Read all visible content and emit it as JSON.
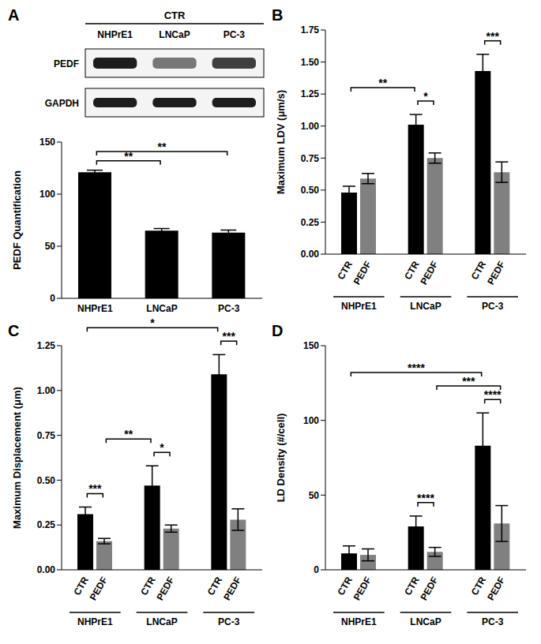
{
  "chart_data": [
    {
      "panel": "A",
      "type": "bar",
      "ylabel": "PEDF Quantification",
      "blot": {
        "header": "CTR",
        "lanes": [
          "NHPrE1",
          "LNCaP",
          "PC-3"
        ],
        "rows": [
          "PEDF",
          "GAPDH"
        ]
      },
      "categories": [
        "NHPrE1",
        "LNCaP",
        "PC-3"
      ],
      "values": [
        121,
        65,
        63
      ],
      "errors": [
        2,
        2,
        2.5
      ],
      "color": "#000000",
      "ylim": [
        0,
        150
      ],
      "yticks": [
        0,
        50,
        100,
        150
      ],
      "annotations": [
        {
          "text": "**",
          "between": [
            "NHPrE1",
            "LNCaP"
          ]
        },
        {
          "text": "**",
          "between": [
            "NHPrE1",
            "PC-3"
          ]
        }
      ]
    },
    {
      "panel": "B",
      "type": "bar",
      "ylabel": "Maximum LDV (μm/s)",
      "categories": [
        "NHPrE1",
        "LNCaP",
        "PC-3"
      ],
      "series": [
        {
          "name": "CTR",
          "color": "#000000",
          "values": [
            0.48,
            1.01,
            1.43
          ],
          "errors": [
            0.05,
            0.08,
            0.13
          ]
        },
        {
          "name": "PEDF",
          "color": "#808080",
          "values": [
            0.59,
            0.75,
            0.64
          ],
          "errors": [
            0.04,
            0.04,
            0.08
          ]
        }
      ],
      "ylim": [
        0,
        1.75
      ],
      "yticks": [
        {
          "value": 0,
          "label": "0.00"
        },
        {
          "value": 0.25,
          "label": "0.25"
        },
        {
          "value": 0.5,
          "label": "0.50"
        },
        {
          "value": 0.75,
          "label": "0.75"
        },
        {
          "value": 1,
          "label": "1.00"
        },
        {
          "value": 1.25,
          "label": "1.25"
        },
        {
          "value": 1.5,
          "label": "1.50"
        },
        {
          "value": 1.75,
          "label": "1.75"
        }
      ],
      "annotations": [
        {
          "text": "*",
          "between": [
            [
              "LNCaP",
              "CTR"
            ],
            [
              "LNCaP",
              "PEDF"
            ]
          ]
        },
        {
          "text": "***",
          "between": [
            [
              "PC-3",
              "CTR"
            ],
            [
              "PC-3",
              "PEDF"
            ]
          ]
        },
        {
          "text": "**",
          "between": [
            [
              "NHPrE1",
              "CTR"
            ],
            [
              "LNCaP",
              "CTR"
            ]
          ]
        }
      ]
    },
    {
      "panel": "C",
      "type": "bar",
      "ylabel": "Maximum Displacement (μm)",
      "categories": [
        "NHPrE1",
        "LNCaP",
        "PC-3"
      ],
      "series": [
        {
          "name": "CTR",
          "color": "#000000",
          "values": [
            0.31,
            0.47,
            1.09
          ],
          "errors": [
            0.04,
            0.11,
            0.11
          ]
        },
        {
          "name": "PEDF",
          "color": "#808080",
          "values": [
            0.16,
            0.23,
            0.28
          ],
          "errors": [
            0.015,
            0.02,
            0.06
          ]
        }
      ],
      "ylim": [
        0,
        1.25
      ],
      "yticks": [
        {
          "value": 0,
          "label": "0.00"
        },
        {
          "value": 0.25,
          "label": "0.25"
        },
        {
          "value": 0.5,
          "label": "0.50"
        },
        {
          "value": 0.75,
          "label": "0.75"
        },
        {
          "value": 1,
          "label": "1.00"
        },
        {
          "value": 1.25,
          "label": "1.25"
        }
      ],
      "annotations": [
        {
          "text": "***",
          "between": [
            [
              "NHPrE1",
              "CTR"
            ],
            [
              "NHPrE1",
              "PEDF"
            ]
          ]
        },
        {
          "text": "*",
          "between": [
            [
              "LNCaP",
              "CTR"
            ],
            [
              "LNCaP",
              "PEDF"
            ]
          ]
        },
        {
          "text": "***",
          "between": [
            [
              "PC-3",
              "CTR"
            ],
            [
              "PC-3",
              "PEDF"
            ]
          ]
        },
        {
          "text": "**",
          "between": [
            [
              "NHPrE1",
              "PEDF"
            ],
            [
              "LNCaP",
              "CTR"
            ]
          ]
        },
        {
          "text": "*",
          "between": [
            [
              "NHPrE1",
              "CTR"
            ],
            [
              "PC-3",
              "CTR"
            ]
          ]
        }
      ]
    },
    {
      "panel": "D",
      "type": "bar",
      "ylabel": "LD Density (#/cell)",
      "categories": [
        "NHPrE1",
        "LNCaP",
        "PC-3"
      ],
      "series": [
        {
          "name": "CTR",
          "color": "#000000",
          "values": [
            11,
            29,
            83
          ],
          "errors": [
            5,
            7,
            22
          ]
        },
        {
          "name": "PEDF",
          "color": "#808080",
          "values": [
            10,
            12,
            31
          ],
          "errors": [
            4,
            3,
            12
          ]
        }
      ],
      "ylim": [
        0,
        150
      ],
      "yticks": [
        0,
        50,
        100,
        150
      ],
      "annotations": [
        {
          "text": "****",
          "between": [
            [
              "LNCaP",
              "CTR"
            ],
            [
              "LNCaP",
              "PEDF"
            ]
          ]
        },
        {
          "text": "****",
          "between": [
            [
              "PC-3",
              "CTR"
            ],
            [
              "PC-3",
              "PEDF"
            ]
          ]
        },
        {
          "text": "***",
          "between": [
            [
              "LNCaP",
              "PEDF"
            ],
            [
              "PC-3",
              "PEDF"
            ]
          ]
        },
        {
          "text": "****",
          "between": [
            [
              "NHPrE1",
              "CTR"
            ],
            [
              "PC-3",
              "CTR"
            ]
          ]
        }
      ]
    }
  ]
}
